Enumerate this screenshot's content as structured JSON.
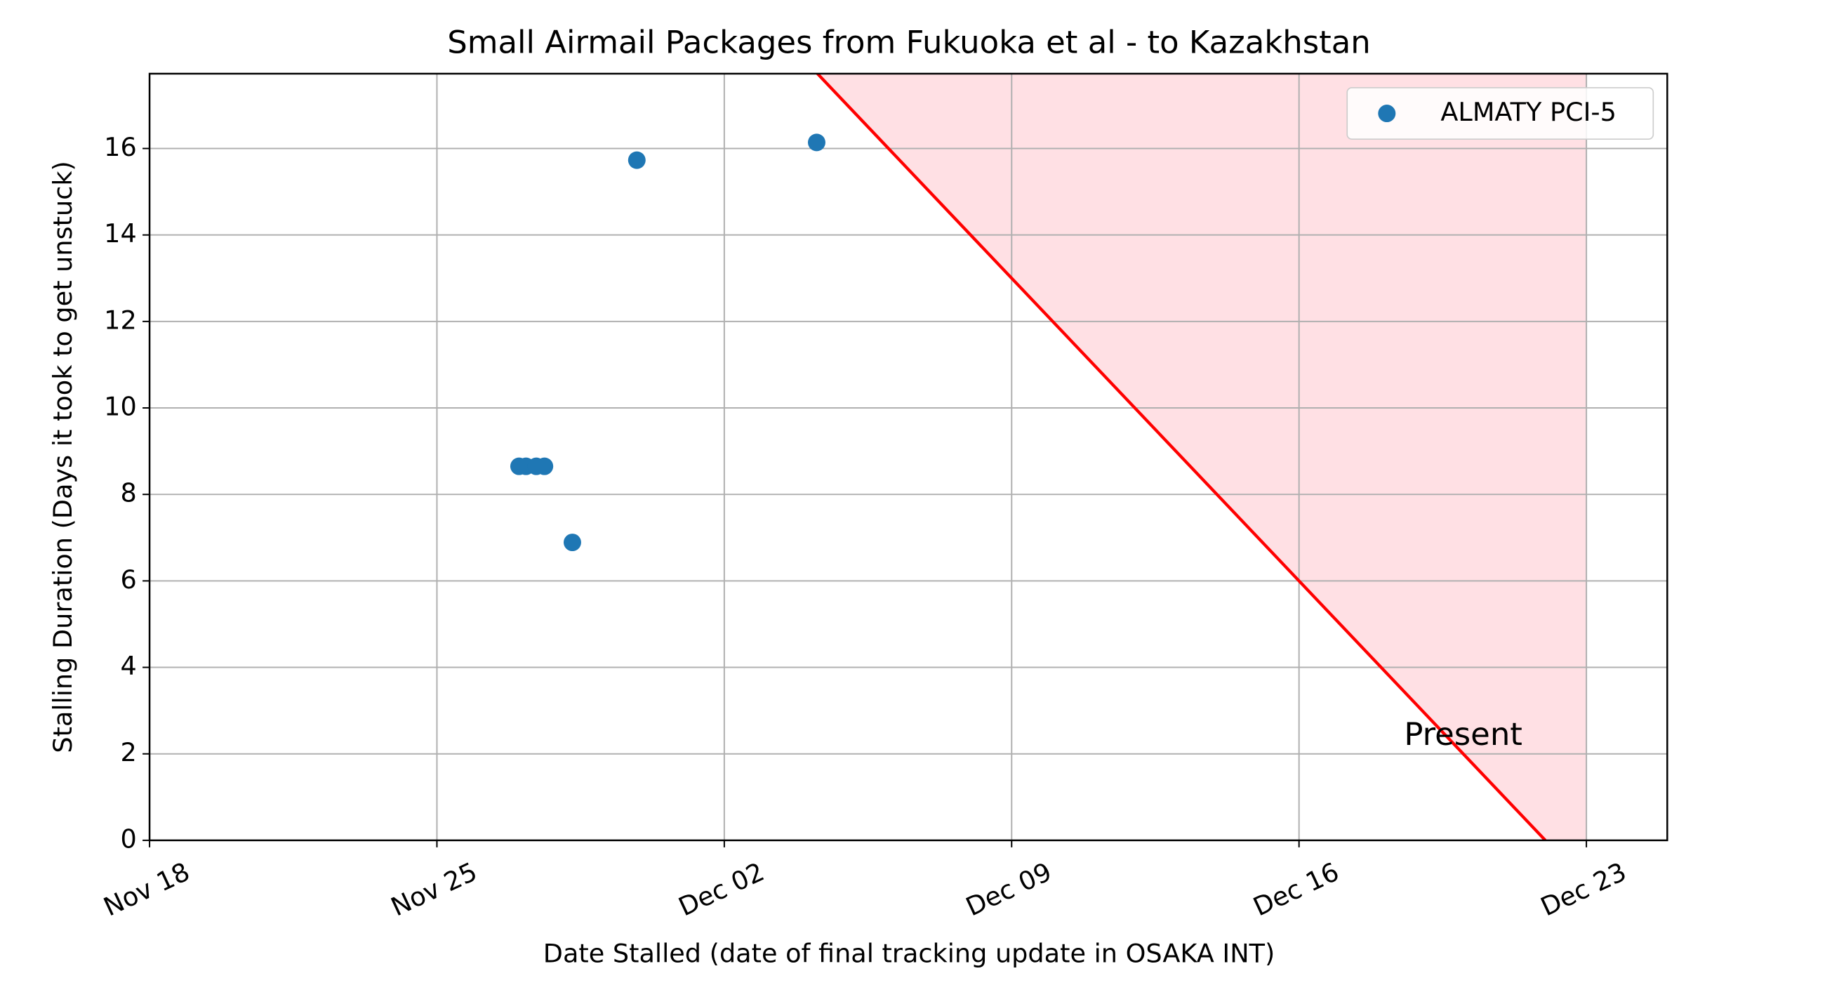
{
  "chart_data": {
    "type": "scatter",
    "title": "Small Airmail Packages from Fukuoka et al - to Kazakhstan",
    "x_label": "Date Stalled (date of final tracking update in OSAKA INT)",
    "y_label": "Stalling Duration (Days it took to get unstuck)",
    "series": [
      {
        "name": "ALMATY PCI-5",
        "color": "#1f77b4",
        "x": [
          331.0,
          331.17,
          331.42,
          331.62,
          332.3,
          333.87,
          338.25
        ],
        "values": [
          8.65,
          8.65,
          8.65,
          8.65,
          6.89,
          15.73,
          16.14
        ]
      }
    ],
    "xlim": [
      322,
      358.97
    ],
    "ylim": [
      0,
      17.73
    ],
    "xticks": [
      {
        "value": 322,
        "label": "Nov 18"
      },
      {
        "value": 329,
        "label": "Nov 25"
      },
      {
        "value": 336,
        "label": "Dec 02"
      },
      {
        "value": 343,
        "label": "Dec 09"
      },
      {
        "value": 350,
        "label": "Dec 16"
      },
      {
        "value": 357,
        "label": "Dec 23"
      }
    ],
    "yticks": [
      0,
      2,
      4,
      6,
      8,
      10,
      12,
      14,
      16
    ],
    "grid": true,
    "legend": "upper right",
    "reference_line": {
      "x": [
        338.27,
        356
      ],
      "y": [
        17.73,
        0
      ],
      "color": "#ff0000"
    },
    "shaded_region": {
      "x": [
        338.27,
        357,
        357,
        356
      ],
      "y": [
        17.73,
        17.73,
        0,
        0
      ],
      "color": "#ffe0e4"
    },
    "annotation": {
      "text": "Present",
      "x": 354,
      "y": 2.4,
      "color": "#ff0000"
    }
  }
}
